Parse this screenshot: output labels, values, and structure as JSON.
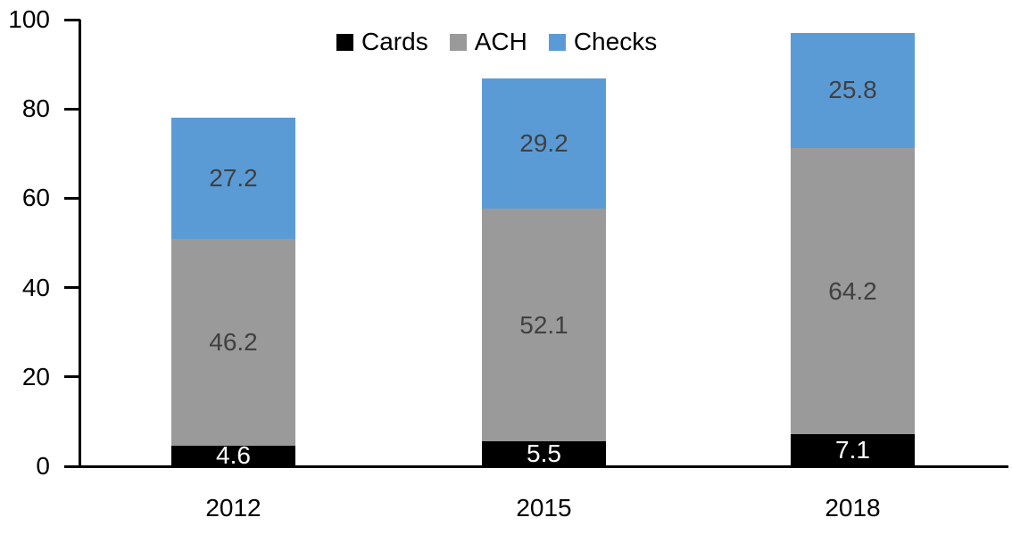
{
  "chart_data": {
    "type": "bar",
    "stacked": true,
    "categories": [
      "2012",
      "2015",
      "2018"
    ],
    "series": [
      {
        "name": "Cards",
        "color": "#000000",
        "label_color": "#FFFFFF",
        "values": [
          4.6,
          5.5,
          7.1
        ]
      },
      {
        "name": "ACH",
        "color": "#9A9A9A",
        "label_color": "#404040",
        "values": [
          46.2,
          52.1,
          64.2
        ]
      },
      {
        "name": "Checks",
        "color": "#5B9BD5",
        "label_color": "#404040",
        "values": [
          27.2,
          29.2,
          25.8
        ]
      }
    ],
    "title": "",
    "xlabel": "",
    "ylabel": "",
    "ylim": [
      0,
      100
    ],
    "yticks": [
      0,
      20,
      40,
      60,
      80,
      100
    ],
    "ytick_labels": [
      "0",
      "20",
      "40",
      "60",
      "80",
      "100"
    ],
    "grid": false,
    "legend_position": "top-center",
    "axis_color": "#000000",
    "tick_label_color": "#000000",
    "background_color": "#FFFFFF"
  }
}
